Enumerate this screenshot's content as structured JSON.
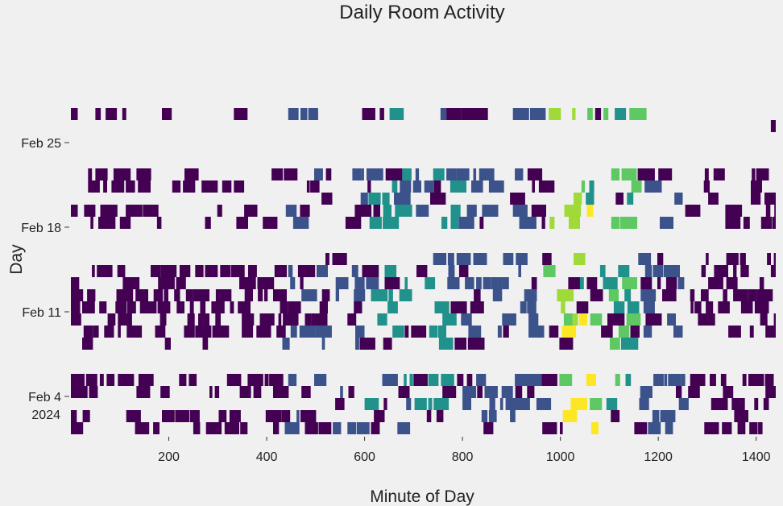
{
  "chart_data": {
    "type": "heatmap",
    "title": "Daily Room Activity",
    "xlabel": "Minute of Day",
    "ylabel": "Day",
    "x_ticks": [
      200,
      400,
      600,
      800,
      1000,
      1200,
      1400
    ],
    "xlim": [
      0,
      1440
    ],
    "y_ticks": [
      {
        "label": "Feb 25",
        "day_index": 24
      },
      {
        "label": "Feb 18",
        "day_index": 17
      },
      {
        "label": "Feb 11",
        "day_index": 10
      },
      {
        "label": "Feb 4",
        "day_index": 3,
        "sub": "2024"
      }
    ],
    "first_day": "Feb 1",
    "day_count": 28,
    "grid": false,
    "legend": "none",
    "palette": [
      "#440154",
      "#3b528b",
      "#21918c",
      "#5ec962",
      "#a0da39",
      "#fde725"
    ],
    "activity_bands": [
      {
        "start": 430,
        "end": 600,
        "level": 1
      },
      {
        "start": 600,
        "end": 780,
        "level": 2
      },
      {
        "start": 780,
        "end": 960,
        "level": 1
      },
      {
        "start": 965,
        "end": 1040,
        "level": 4
      },
      {
        "start": 1040,
        "end": 1150,
        "level": 3
      },
      {
        "start": 1150,
        "end": 1260,
        "level": 1
      }
    ],
    "peak_windows": [
      {
        "start": 985,
        "end": 1075,
        "level": 5
      }
    ],
    "rows": [
      {
        "day_index": 0,
        "start": 0,
        "end": 1440,
        "density": 0.45,
        "end_clip": 1440
      },
      {
        "day_index": 1,
        "start": 0,
        "end": 1440,
        "density": 0.5
      },
      {
        "day_index": 2,
        "start": 540,
        "end": 1440,
        "density": 0.5
      },
      {
        "day_index": 3,
        "start": 0,
        "end": 1440,
        "density": 0.45
      },
      {
        "day_index": 4,
        "start": 0,
        "end": 1440,
        "density": 0.7
      },
      {
        "day_index": 5,
        "start": 0,
        "end": 0,
        "density": 0
      },
      {
        "day_index": 6,
        "start": 0,
        "end": 0,
        "density": 0
      },
      {
        "day_index": 7,
        "start": 0,
        "end": 1255,
        "density": 0.3
      },
      {
        "day_index": 8,
        "start": 0,
        "end": 1440,
        "density": 0.7
      },
      {
        "day_index": 9,
        "start": 0,
        "end": 1440,
        "density": 0.55
      },
      {
        "day_index": 10,
        "start": 0,
        "end": 1440,
        "density": 0.6
      },
      {
        "day_index": 11,
        "start": 0,
        "end": 1440,
        "density": 0.6
      },
      {
        "day_index": 12,
        "start": 0,
        "end": 1440,
        "density": 0.6
      },
      {
        "day_index": 13,
        "start": 0,
        "end": 1440,
        "density": 0.55
      },
      {
        "day_index": 14,
        "start": 520,
        "end": 1440,
        "density": 0.5
      },
      {
        "day_index": 15,
        "start": 0,
        "end": 0,
        "density": 0
      },
      {
        "day_index": 16,
        "start": 0,
        "end": 0,
        "density": 0
      },
      {
        "day_index": 17,
        "start": 0,
        "end": 1440,
        "density": 0.55
      },
      {
        "day_index": 18,
        "start": 0,
        "end": 1440,
        "density": 0.5
      },
      {
        "day_index": 19,
        "start": 500,
        "end": 1440,
        "density": 0.5
      },
      {
        "day_index": 20,
        "start": 0,
        "end": 1440,
        "density": 0.55
      },
      {
        "day_index": 21,
        "start": 0,
        "end": 1440,
        "density": 0.6
      },
      {
        "day_index": 22,
        "start": 0,
        "end": 0,
        "density": 0
      },
      {
        "day_index": 23,
        "start": 0,
        "end": 0,
        "density": 0
      },
      {
        "day_index": 24,
        "start": 0,
        "end": 0,
        "density": 0
      },
      {
        "day_index": 25,
        "start": 1430,
        "end": 1440,
        "density": 1.0
      },
      {
        "day_index": 26,
        "start": 0,
        "end": 1225,
        "density": 0.45
      },
      {
        "day_index": 27,
        "start": 0,
        "end": 0,
        "density": 0
      }
    ]
  }
}
